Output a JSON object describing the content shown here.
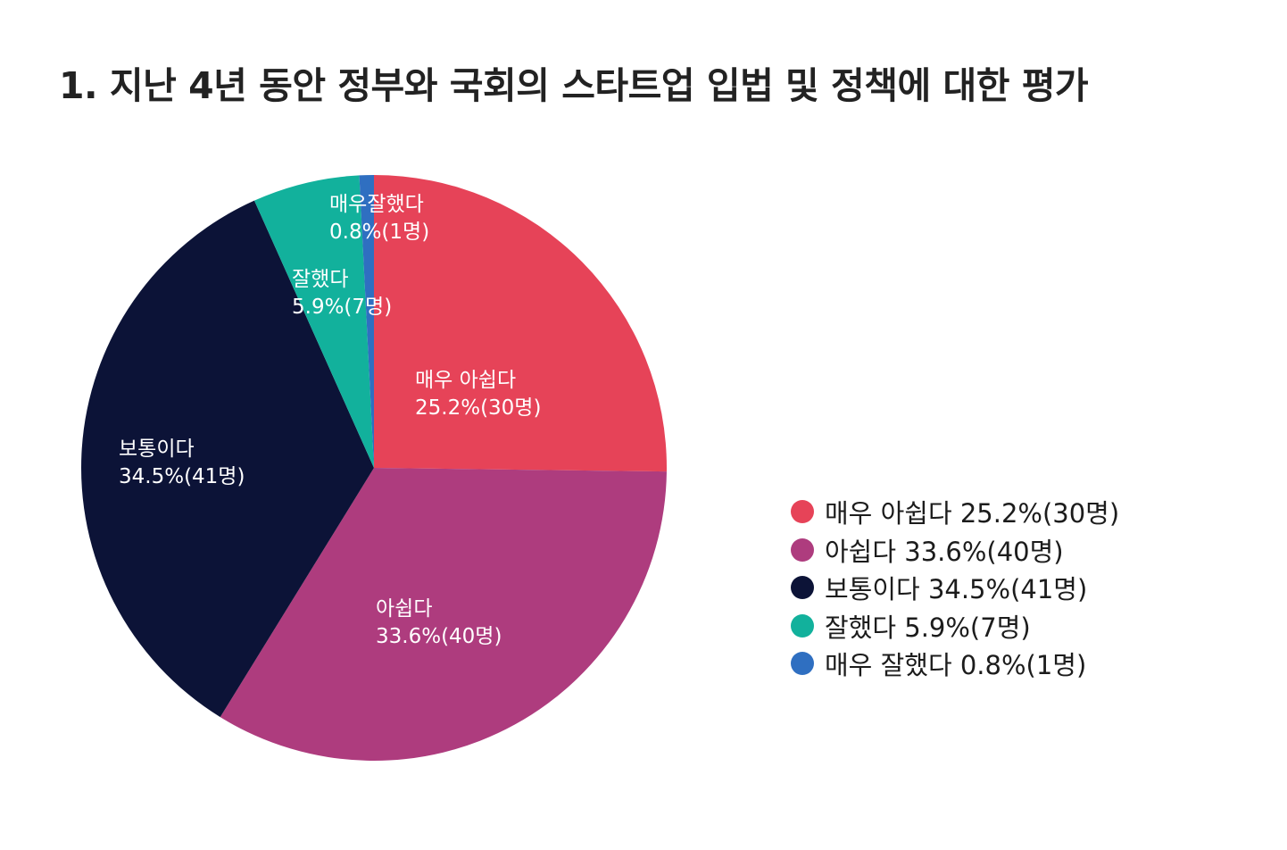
{
  "title": "1. 지난 4년 동안 정부와 국회의 스타트업 입법 및 정책에 대한 평가",
  "chart_data": {
    "type": "pie",
    "title": "1. 지난 4년 동안 정부와 국회의 스타트업 입법 및 정책에 대한 평가",
    "legend_position": "right",
    "slices": [
      {
        "label": "매우 아쉽다",
        "slice_label": "매우 아쉽다",
        "value": 25.2,
        "count": 30,
        "value_text": "25.2%(30명)",
        "legend_text": "매우 아쉽다 25.2%(30명)",
        "color": "#E64358"
      },
      {
        "label": "아쉽다",
        "slice_label": "아쉽다",
        "value": 33.6,
        "count": 40,
        "value_text": "33.6%(40명)",
        "legend_text": "아쉽다 33.6%(40명)",
        "color": "#AE3C7E"
      },
      {
        "label": "보통이다",
        "slice_label": "보통이다",
        "value": 34.5,
        "count": 41,
        "value_text": "34.5%(41명)",
        "legend_text": "보통이다 34.5%(41명)",
        "color": "#0C1337"
      },
      {
        "label": "잘했다",
        "slice_label": "잘했다",
        "value": 5.9,
        "count": 7,
        "value_text": "5.9%(7명)",
        "legend_text": "잘했다 5.9%(7명)",
        "color": "#12B19C"
      },
      {
        "label": "매우 잘했다",
        "slice_label": "매우잘했다",
        "value": 0.8,
        "count": 1,
        "value_text": "0.8%(1명)",
        "legend_text": "매우 잘했다 0.8%(1명)",
        "color": "#2F6FC1"
      }
    ]
  }
}
